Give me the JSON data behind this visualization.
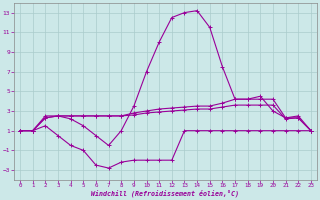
{
  "xlabel": "Windchill (Refroidissement éolien,°C)",
  "bg_color": "#cce8e8",
  "line_color": "#990099",
  "grid_color": "#aacccc",
  "xlim": [
    -0.5,
    23.5
  ],
  "ylim": [
    -4,
    14
  ],
  "xticks": [
    0,
    1,
    2,
    3,
    4,
    5,
    6,
    7,
    8,
    9,
    10,
    11,
    12,
    13,
    14,
    15,
    16,
    17,
    18,
    19,
    20,
    21,
    22,
    23
  ],
  "yticks": [
    -3,
    -1,
    1,
    3,
    5,
    7,
    9,
    11,
    13
  ],
  "series_spike_x": [
    0,
    1,
    2,
    3,
    4,
    5,
    6,
    7,
    8,
    9,
    10,
    11,
    12,
    13,
    14,
    15,
    16,
    17,
    18,
    19,
    20,
    21,
    22,
    23
  ],
  "series_spike_y": [
    1.0,
    1.0,
    2.5,
    2.5,
    2.2,
    1.5,
    0.5,
    -0.5,
    1.0,
    3.5,
    7.0,
    10.0,
    12.5,
    13.0,
    13.2,
    11.5,
    7.5,
    4.2,
    4.2,
    4.5,
    3.0,
    2.3,
    2.3,
    1.0
  ],
  "series_mid2_x": [
    0,
    1,
    2,
    3,
    4,
    5,
    6,
    7,
    8,
    9,
    10,
    11,
    12,
    13,
    14,
    15,
    16,
    17,
    18,
    19,
    20,
    21,
    22,
    23
  ],
  "series_mid2_y": [
    1.0,
    1.0,
    2.3,
    2.5,
    2.5,
    2.5,
    2.5,
    2.5,
    2.5,
    2.8,
    3.0,
    3.2,
    3.3,
    3.4,
    3.5,
    3.5,
    3.8,
    4.2,
    4.2,
    4.2,
    4.2,
    2.3,
    2.5,
    1.0
  ],
  "series_mid1_x": [
    0,
    1,
    2,
    3,
    4,
    5,
    6,
    7,
    8,
    9,
    10,
    11,
    12,
    13,
    14,
    15,
    16,
    17,
    18,
    19,
    20,
    21,
    22,
    23
  ],
  "series_mid1_y": [
    1.0,
    1.0,
    2.3,
    2.5,
    2.5,
    2.5,
    2.5,
    2.5,
    2.5,
    2.6,
    2.8,
    2.9,
    3.0,
    3.1,
    3.2,
    3.2,
    3.4,
    3.6,
    3.6,
    3.6,
    3.6,
    2.2,
    2.3,
    1.0
  ],
  "series_flat_x": [
    0,
    1,
    2,
    3,
    4,
    5,
    6,
    7,
    8,
    9,
    10,
    11,
    12,
    13,
    14,
    15,
    16,
    17,
    18,
    19,
    20,
    21,
    22,
    23
  ],
  "series_flat_y": [
    1.0,
    1.0,
    1.5,
    0.5,
    -0.5,
    -1.0,
    -2.5,
    -2.8,
    -2.2,
    -2.0,
    -2.0,
    -2.0,
    -2.0,
    1.0,
    1.0,
    1.0,
    1.0,
    1.0,
    1.0,
    1.0,
    1.0,
    1.0,
    1.0,
    1.0
  ],
  "marker": "+"
}
